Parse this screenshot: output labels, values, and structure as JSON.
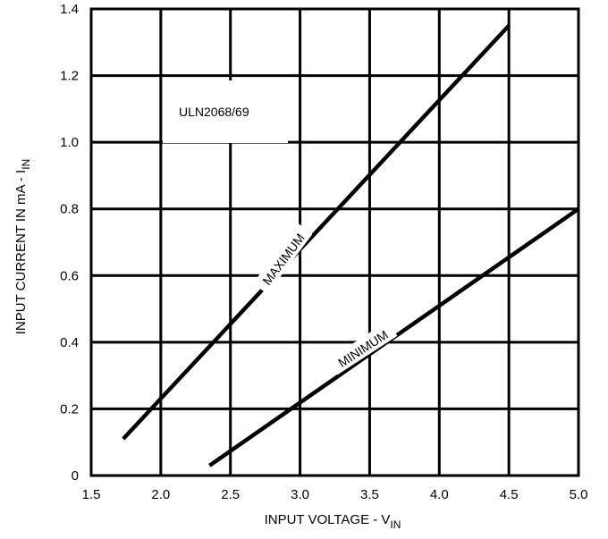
{
  "chart_data": {
    "type": "line",
    "title": "",
    "annotation": "ULN2068/69",
    "xlabel": "INPUT VOLTAGE - V",
    "xlabel_sub": "IN",
    "ylabel": "INPUT CURRENT IN mA - I",
    "ylabel_sub": "IN",
    "xlim": [
      1.5,
      5.0
    ],
    "ylim": [
      0,
      1.4
    ],
    "x_ticks": [
      "1.5",
      "2.0",
      "2.5",
      "3.0",
      "3.5",
      "4.0",
      "4.5",
      "5.0"
    ],
    "y_ticks": [
      "0",
      "0.2",
      "0.4",
      "0.6",
      "0.8",
      "1.0",
      "1.2",
      "1.4"
    ],
    "grid": true,
    "series": [
      {
        "name": "MAXIMUM",
        "x": [
          1.73,
          4.5
        ],
        "y": [
          0.11,
          1.35
        ]
      },
      {
        "name": "MINIMUM",
        "x": [
          2.35,
          5.0
        ],
        "y": [
          0.03,
          0.8
        ]
      }
    ],
    "line_color": "#000000"
  }
}
